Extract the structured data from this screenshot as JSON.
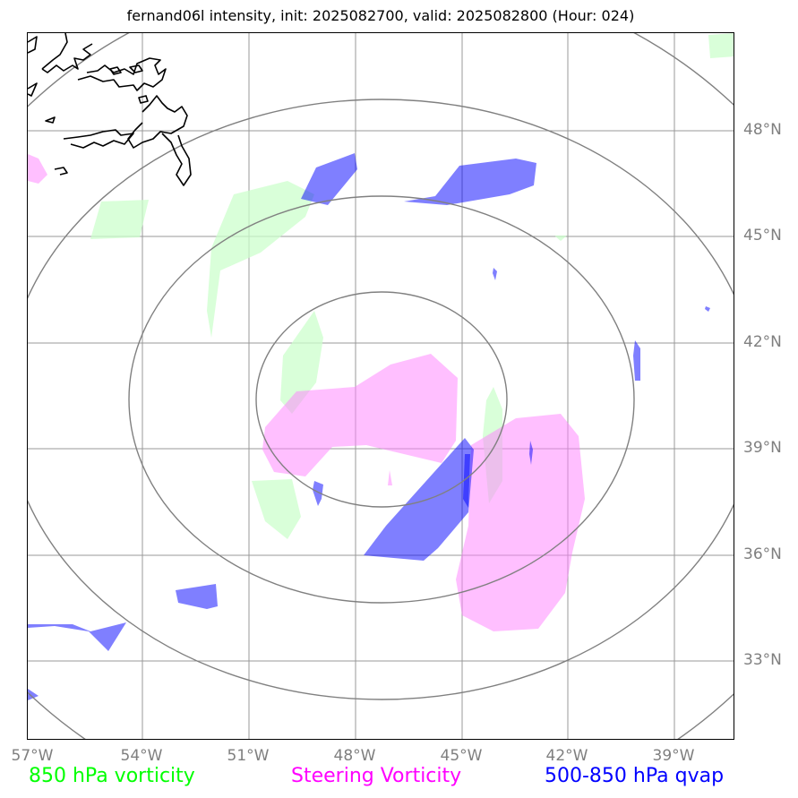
{
  "title": "fernand06l intensity, init: 2025082700, valid: 2025082800 (Hour: 024)",
  "lat_labels": [
    "48°N",
    "45°N",
    "42°N",
    "39°N",
    "36°N",
    "33°N"
  ],
  "lon_labels": [
    "57°W",
    "54°W",
    "51°W",
    "48°W",
    "45°W",
    "42°W",
    "39°W"
  ],
  "legend": {
    "vort850": {
      "label": "850 hPa vorticity",
      "color": "#00ff00"
    },
    "steering": {
      "label": "Steering Vorticity",
      "color": "#ff00ff"
    },
    "qvap": {
      "label": "500-850 hPa qvap",
      "color": "#0000ff"
    }
  },
  "colors": {
    "grid": "#999999",
    "range_rings": "#808080",
    "coastline": "#000000",
    "vort850_fill": "#ccffcc",
    "steering_fill": "#ff80ff",
    "qvap_fill": "#0000ff"
  }
}
